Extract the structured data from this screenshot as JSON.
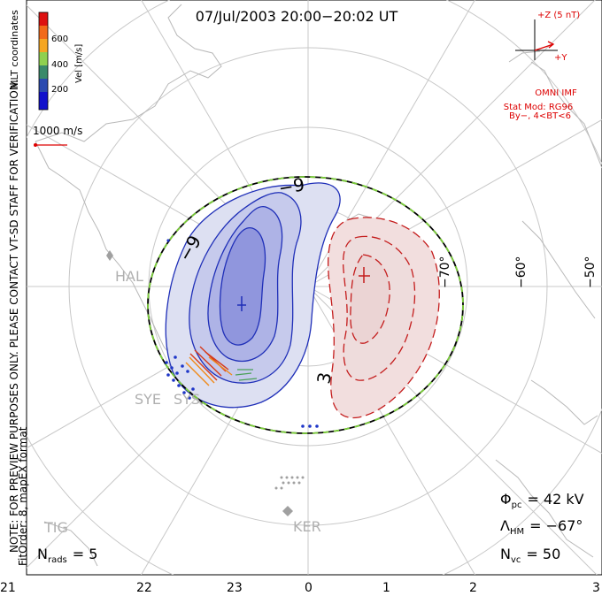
{
  "header": {
    "title": "07/Jul/2003 20:00−20:02 UT"
  },
  "velocity_scale": {
    "label": "Vel [m/s]",
    "ticks": [
      "600",
      "400",
      "200"
    ],
    "colors": [
      "#dd1111",
      "#f26a1a",
      "#f5a623",
      "#8fd14f",
      "#3a8a6a",
      "#2b4bb0",
      "#1111cc"
    ]
  },
  "coordinate_label": "MLT coordinates",
  "reference_vector_label": "1000 m/s",
  "preview_note": "NOTE: FOR PREVIEW PURPOSES ONLY. PLEASE CONTACT VT-SD STAFF FOR VERIFICATION.",
  "fit_note": "FitOrder: 8, mapEX format",
  "imf": {
    "z_label": "+Z (5 nT)",
    "y_label": "+Y",
    "source": "OMNI IMF",
    "model": "Stat Mod: RG96",
    "condition": "By−, 4<BT<6"
  },
  "latitude_labels": [
    "−70°",
    "−60°",
    "−50°"
  ],
  "mlt_ticks": [
    "21",
    "22",
    "23",
    "0",
    "1",
    "2",
    "3"
  ],
  "stations": [
    "HAL",
    "SYE",
    "SYS",
    "KER",
    "TIG"
  ],
  "contour_labels": {
    "negative": "−9",
    "positive": "3"
  },
  "stats": {
    "phi_label": "Φ",
    "phi_sub": "pc",
    "phi_value": "= 42 kV",
    "lambda_label": "Λ",
    "lambda_sub": "HM",
    "lambda_value": "= −67°",
    "nvc_label": "N",
    "nvc_sub": "vc",
    "nvc_value": "= 50",
    "nrads_label": "N",
    "nrads_sub": "rads",
    "nrads_value": "= 5"
  }
}
